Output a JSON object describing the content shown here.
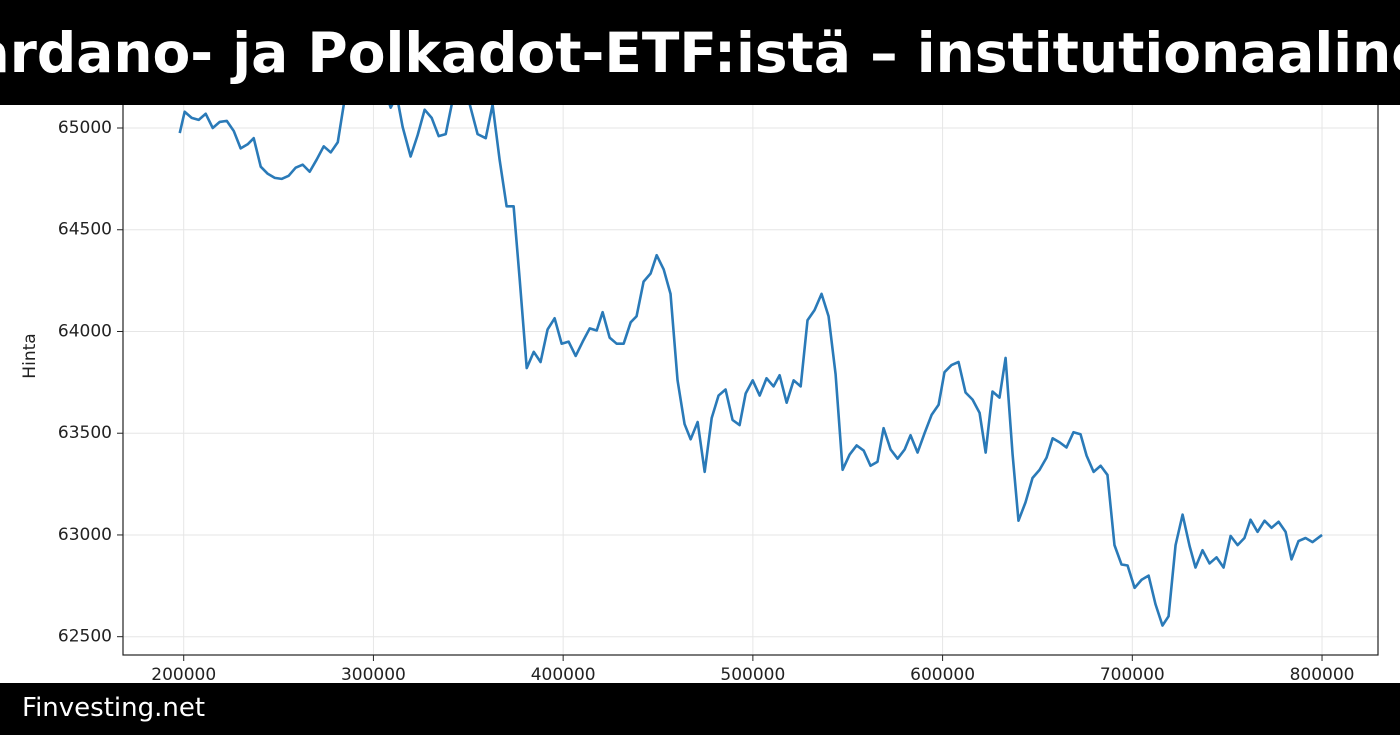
{
  "header": {
    "title": "Cardano- ja Polkadot-ETF:istä – institutionaalinen"
  },
  "footer": {
    "text": "Finvesting.net"
  },
  "chart_data": {
    "type": "line",
    "ylabel": "Hinta",
    "color": "#2a7ab8",
    "grid": true,
    "xlim": [
      168000,
      829500
    ],
    "ylim": [
      62410,
      65580
    ],
    "xticks": [
      200000,
      300000,
      400000,
      500000,
      600000,
      700000,
      800000
    ],
    "yticks": [
      62500,
      63000,
      63500,
      64000,
      64500,
      65000
    ],
    "x": [
      197900,
      200500,
      204200,
      207900,
      211600,
      215300,
      219000,
      222700,
      226400,
      230000,
      233700,
      236900,
      240600,
      244300,
      248000,
      251600,
      255300,
      259000,
      262700,
      266400,
      270100,
      273800,
      277500,
      281200,
      284800,
      288500,
      292200,
      295900,
      299600,
      303300,
      307000,
      309100,
      312300,
      315400,
      319600,
      323300,
      327000,
      330700,
      334400,
      338100,
      341800,
      345500,
      349100,
      354900,
      359200,
      362800,
      366500,
      370200,
      373900,
      377100,
      380800,
      384500,
      388100,
      391800,
      395500,
      399200,
      402900,
      406600,
      410300,
      414000,
      417700,
      420800,
      424500,
      428200,
      431900,
      435600,
      438700,
      442400,
      446100,
      449300,
      453000,
      456600,
      460300,
      464000,
      467200,
      470900,
      474600,
      478300,
      481900,
      485600,
      489300,
      493000,
      496200,
      499900,
      503600,
      507200,
      510900,
      514100,
      517800,
      521500,
      525200,
      528800,
      532500,
      536200,
      539900,
      543600,
      547300,
      551000,
      554700,
      558400,
      562000,
      565700,
      568900,
      572600,
      576300,
      580000,
      583100,
      586800,
      590500,
      594200,
      597900,
      601000,
      604700,
      608400,
      612100,
      615800,
      619500,
      622700,
      626300,
      630000,
      633200,
      636900,
      640000,
      643700,
      647400,
      651100,
      654800,
      658000,
      661700,
      665300,
      669000,
      672700,
      675900,
      679600,
      683300,
      686900,
      690600,
      694300,
      697500,
      701200,
      704900,
      708600,
      712200,
      715900,
      719100,
      722800,
      726500,
      730200,
      733300,
      737000,
      740700,
      744400,
      748100,
      751800,
      755500,
      759100,
      762300,
      766000,
      769700,
      773400,
      777100,
      780800,
      783900,
      787600,
      791300,
      795000,
      800000
    ],
    "values": [
      64975,
      65080,
      65050,
      65040,
      65070,
      65000,
      65030,
      65035,
      64985,
      64900,
      64920,
      64950,
      64810,
      64775,
      64755,
      64750,
      64765,
      64805,
      64820,
      64785,
      64845,
      64910,
      64880,
      64930,
      65140,
      65285,
      65320,
      65250,
      65180,
      65140,
      65160,
      65100,
      65160,
      65005,
      64860,
      64965,
      65090,
      65050,
      64960,
      64970,
      65140,
      65235,
      65175,
      64970,
      64950,
      65115,
      64845,
      64615,
      64615,
      64255,
      63820,
      63900,
      63850,
      64010,
      64065,
      63940,
      63950,
      63880,
      63950,
      64015,
      64005,
      64095,
      63970,
      63940,
      63940,
      64045,
      64075,
      64245,
      64285,
      64375,
      64305,
      64185,
      63760,
      63545,
      63470,
      63555,
      63310,
      63575,
      63685,
      63715,
      63565,
      63540,
      63695,
      63760,
      63685,
      63770,
      63730,
      63785,
      63650,
      63760,
      63730,
      64055,
      64105,
      64185,
      64075,
      63790,
      63320,
      63395,
      63440,
      63415,
      63340,
      63360,
      63525,
      63420,
      63375,
      63420,
      63490,
      63405,
      63500,
      63590,
      63640,
      63800,
      63835,
      63850,
      63700,
      63665,
      63600,
      63405,
      63705,
      63675,
      63870,
      63395,
      63070,
      63160,
      63280,
      63320,
      63380,
      63475,
      63455,
      63430,
      63505,
      63495,
      63390,
      63310,
      63340,
      63295,
      62950,
      62855,
      62850,
      62740,
      62780,
      62800,
      62660,
      62555,
      62600,
      62950,
      63100,
      62945,
      62840,
      62925,
      62860,
      62890,
      62840,
      62995,
      62950,
      62985,
      63075,
      63015,
      63070,
      63035,
      63065,
      63015,
      62880,
      62970,
      62985,
      62965,
      63000
    ]
  }
}
